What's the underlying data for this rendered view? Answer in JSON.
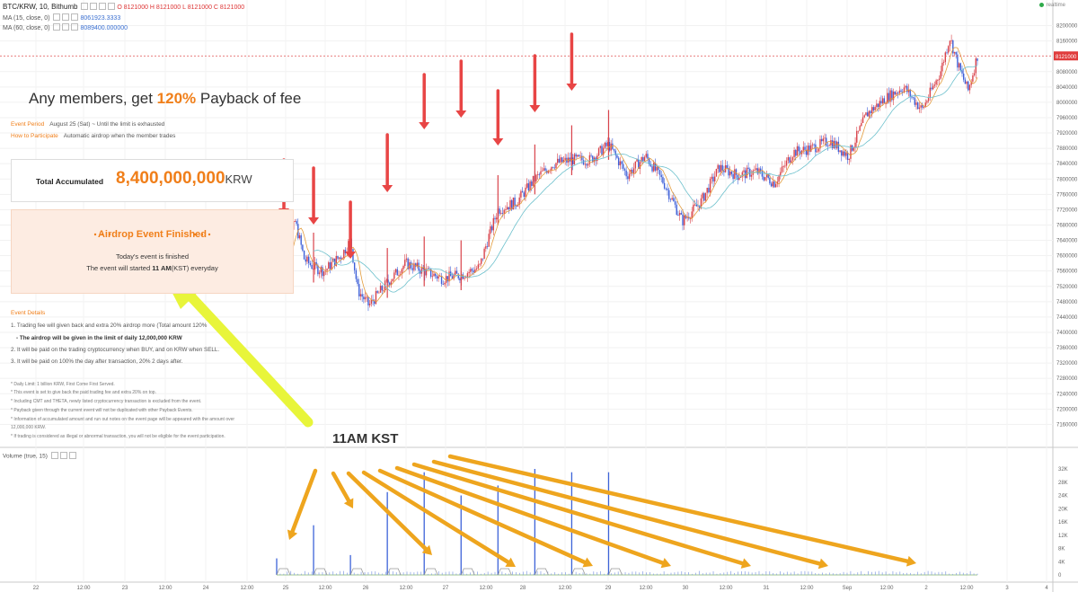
{
  "header": {
    "symbol": "BTC/KRW, 10, Bithumb",
    "ohlc": "O 8121000  H 8121000  L 8121000  C 8121000",
    "ma1_label": "MA (15, close, 0)",
    "ma1_value": "8061923.3333",
    "ma2_label": "MA (60, close, 0)",
    "ma2_value": "8089400.000000",
    "realtime": "realtime"
  },
  "promo": {
    "title_pre": "Any members, get ",
    "title_hl": "120%",
    "title_post": " Payback of fee",
    "period_label": "Event Period",
    "period_value": "August 25 (Sat) ~ Until the limit is exhausted",
    "how_label": "How to Participate",
    "how_value": "Automatic airdrop when the member trades",
    "total_label": "Total Accumulated",
    "total_value": "8,400,000,000",
    "total_unit": "KRW",
    "airdrop_title": "Airdrop Event Finished",
    "airdrop_line1": "Today's event is finished",
    "airdrop_line2_pre": "The event will started ",
    "airdrop_line2_bold": "11 AM",
    "airdrop_line2_post": "(KST) everyday",
    "details_title": "Event Details",
    "details": [
      "1. Trading fee will given back and extra 20% airdrop more (Total amount 120%",
      "- The airdrop will be given in the limit of daily 12,000,000 KRW",
      "2. It will be paid on the trading cryptocurrency when BUY, and on KRW when SELL.",
      "3. It will be paid on 100% the day after transaction, 20% 2 days after."
    ],
    "notes": [
      "* Daily Limit: 1 billion KRW, First Come First Served.",
      "* This event is set to give back the paid trading fee and extra 20% on top.",
      "* Including CMT and THETA, newly listed cryptocurrency transaction is excluded from the event.",
      "* Payback given through the current event will not be duplicated with other Payback Events.",
      "* Information of accumulated amount and run out notes on the event page will be appeared with the amount over",
      "12,000,000 KRW.",
      "* If trading is considered as illegal or abnormal transaction, you will not be eligible for the event participation."
    ]
  },
  "annotation": {
    "label": "11AM KST"
  },
  "volume_header": "Volume (true, 15)",
  "chart_data": [
    {
      "type": "candlestick",
      "title": "BTC/KRW, 10, Bithumb",
      "ylim": [
        7100000,
        8220000
      ],
      "price_ticks": [
        8200000,
        8160000,
        8080000,
        8040000,
        8000000,
        7960000,
        7920000,
        7880000,
        7840000,
        7800000,
        7760000,
        7720000,
        7680000,
        7640000,
        7600000,
        7560000,
        7520000,
        7480000,
        7440000,
        7400000,
        7360000,
        7320000,
        7280000,
        7240000,
        7200000,
        7160000
      ],
      "current_price": 8121000,
      "current_price_label": "8121000",
      "x_ticks": [
        "22",
        "12:00",
        "23",
        "12:00",
        "24",
        "12:00",
        "25",
        "12:00",
        "26",
        "12:00",
        "27",
        "12:00",
        "28",
        "12:00",
        "29",
        "12:00",
        "30",
        "12:00",
        "31",
        "12:00",
        "Sep",
        "12:00",
        "2",
        "12:00",
        "3",
        "4",
        "12:00"
      ],
      "price_path": [
        [
          0,
          7560000
        ],
        [
          0.25,
          7610000
        ],
        [
          0.5,
          7690000
        ],
        [
          0.75,
          7590000
        ],
        [
          1.0,
          7570000
        ],
        [
          1.3,
          7560000
        ],
        [
          1.5,
          7580000
        ],
        [
          1.75,
          7600000
        ],
        [
          2.0,
          7640000
        ],
        [
          2.2,
          7510000
        ],
        [
          2.5,
          7470000
        ],
        [
          3.0,
          7530000
        ],
        [
          3.5,
          7580000
        ],
        [
          4.0,
          7560000
        ],
        [
          4.5,
          7540000
        ],
        [
          5.0,
          7550000
        ],
        [
          5.5,
          7570000
        ],
        [
          5.75,
          7650000
        ],
        [
          6.0,
          7720000
        ],
        [
          6.5,
          7740000
        ],
        [
          7.0,
          7800000
        ],
        [
          7.5,
          7840000
        ],
        [
          8.0,
          7850000
        ],
        [
          8.5,
          7850000
        ],
        [
          9.0,
          7890000
        ],
        [
          9.5,
          7810000
        ],
        [
          10.0,
          7860000
        ],
        [
          10.5,
          7790000
        ],
        [
          11.0,
          7690000
        ],
        [
          11.5,
          7740000
        ],
        [
          12.0,
          7830000
        ],
        [
          12.5,
          7810000
        ],
        [
          13.0,
          7820000
        ],
        [
          13.5,
          7790000
        ],
        [
          14.0,
          7870000
        ],
        [
          14.5,
          7880000
        ],
        [
          15.0,
          7900000
        ],
        [
          15.5,
          7860000
        ],
        [
          16.0,
          7970000
        ],
        [
          16.5,
          8010000
        ],
        [
          17.0,
          8040000
        ],
        [
          17.5,
          7980000
        ],
        [
          18.0,
          8080000
        ],
        [
          18.25,
          8170000
        ],
        [
          18.5,
          8090000
        ],
        [
          18.75,
          8030000
        ],
        [
          19.0,
          8121000
        ]
      ],
      "spikes": [
        0.0,
        1.0,
        2.0,
        3.0,
        4.0,
        5.0,
        6.0,
        7.0,
        8.0,
        9.0
      ]
    },
    {
      "type": "bar",
      "title": "Volume (true, 15)",
      "ylim": [
        0,
        32000
      ],
      "y_ticks": [
        "32K",
        "28K",
        "24K",
        "20K",
        "16K",
        "12K",
        "8K",
        "4K",
        "0"
      ],
      "y_values": [
        32000,
        28000,
        24000,
        20000,
        16000,
        12000,
        8000,
        4000,
        0
      ],
      "spike_volumes": [
        5000,
        15000,
        6000,
        25000,
        31000,
        24000,
        27000,
        32000,
        31000,
        31000
      ]
    }
  ],
  "colors": {
    "accent": "#f07f1a",
    "up": "#d9424a",
    "down": "#3d5fd8",
    "ma_short": "#e39b3b",
    "ma_long": "#6cc0cc",
    "marker_arrow": "#e84545",
    "highlight_arrow": "#e8f53a",
    "volume_arrow": "#eea51e"
  }
}
